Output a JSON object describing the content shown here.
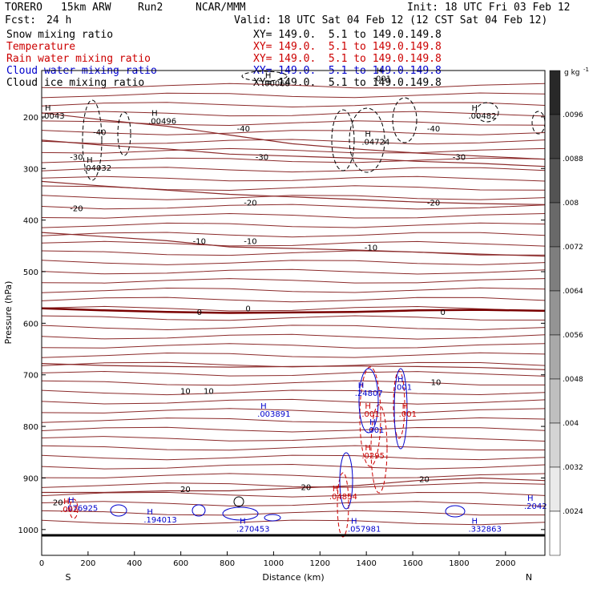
{
  "header": {
    "model": "TORERO",
    "resolution": "15km ARW",
    "run": "Run2",
    "org": "NCAR/MMM",
    "init": "Init: 18 UTC Fri 03 Feb 12",
    "fcst_label": "Fcst:",
    "fcst_value": "24 h",
    "valid": "Valid: 18 UTC Sat 04 Feb 12 (12 CST Sat 04 Feb 12)"
  },
  "fields": [
    {
      "name": "Snow mixing ratio",
      "xy": "XY= 149.0.  5.1 to 149.0.149.8",
      "color": "#000000"
    },
    {
      "name": "Temperature",
      "xy": "XY= 149.0.  5.1 to 149.0.149.8",
      "color": "#cc0000"
    },
    {
      "name": "Rain water mixing ratio",
      "xy": "XY= 149.0.  5.1 to 149.0.149.8",
      "color": "#cc0000"
    },
    {
      "name": "Cloud water mixing ratio",
      "xy": "XY= 149.0.  5.1 to 149.0.149.8",
      "color": "#0000cc"
    },
    {
      "name": "Cloud ice mixing ratio",
      "xy": "XY= 149.0.  5.1 to 149.0.149.8",
      "color": "#000000"
    }
  ],
  "chart_data": {
    "type": "contour cross-section",
    "xlabel": "Distance (km)",
    "ylabel": "Pressure (hPa)",
    "xlim": [
      0,
      2170
    ],
    "ylim": [
      1050,
      110
    ],
    "x_ticks": [
      0,
      200,
      400,
      600,
      800,
      1000,
      1200,
      1400,
      1600,
      1800,
      2000
    ],
    "y_ticks": [
      200,
      300,
      400,
      500,
      600,
      700,
      800,
      900,
      1000
    ],
    "x_end_left": "S",
    "x_end_right": "N",
    "colorbar": {
      "unit": "g kg",
      "unit_exp": "-1",
      "levels": [
        ".0096",
        ".0088",
        ".008",
        ".0072",
        ".0064",
        ".0056",
        ".0048",
        ".004",
        ".0032",
        ".0024"
      ]
    },
    "temperature_contours": [
      {
        "label": "-40",
        "p": [
          192,
          206,
          218,
          235,
          252,
          262,
          270,
          276,
          282
        ]
      },
      {
        "label": "-30",
        "p": [
          245,
          255,
          262,
          272,
          276,
          280,
          286,
          290,
          296
        ]
      },
      {
        "label": "-20",
        "p": [
          325,
          334,
          342,
          350,
          355,
          360,
          365,
          368,
          370
        ]
      },
      {
        "label": "-10",
        "p": [
          424,
          432,
          440,
          452,
          455,
          458,
          462,
          466,
          470
        ]
      },
      {
        "label": "0",
        "p": [
          571,
          575,
          578,
          580,
          579,
          578,
          575,
          574,
          576
        ]
      },
      {
        "label": "10",
        "p": [
          678,
          682,
          684,
          685,
          684,
          683,
          684,
          686,
          690
        ]
      },
      {
        "label": "20",
        "p": [
          928,
          928,
          925,
          925,
          920,
          915,
          905,
          900,
          905
        ]
      }
    ],
    "contour_x": [
      0,
      270,
      540,
      810,
      1080,
      1350,
      1620,
      1890,
      2170
    ],
    "temperature_labels": [
      {
        "text": "-40",
        "x": 250,
        "p": 235
      },
      {
        "text": "-40",
        "x": 870,
        "p": 228
      },
      {
        "text": "-40",
        "x": 1690,
        "p": 228
      },
      {
        "text": "-30",
        "x": 150,
        "p": 283
      },
      {
        "text": "-30",
        "x": 950,
        "p": 283
      },
      {
        "text": "-30",
        "x": 1800,
        "p": 283
      },
      {
        "text": "-20",
        "x": 150,
        "p": 383
      },
      {
        "text": "-20",
        "x": 900,
        "p": 372
      },
      {
        "text": "-20",
        "x": 1690,
        "p": 372
      },
      {
        "text": "-10",
        "x": 680,
        "p": 446
      },
      {
        "text": "-10",
        "x": 900,
        "p": 446
      },
      {
        "text": "-10",
        "x": 1420,
        "p": 459
      },
      {
        "text": "0",
        "x": 680,
        "p": 584
      },
      {
        "text": "0",
        "x": 890,
        "p": 577
      },
      {
        "text": "0",
        "x": 1730,
        "p": 584
      },
      {
        "text": "10",
        "x": 620,
        "p": 737
      },
      {
        "text": "10",
        "x": 720,
        "p": 737
      },
      {
        "text": "10",
        "x": 1700,
        "p": 720
      },
      {
        "text": "20",
        "x": 70,
        "p": 953
      },
      {
        "text": "20",
        "x": 620,
        "p": 927
      },
      {
        "text": "20",
        "x": 1140,
        "p": 923
      },
      {
        "text": "20",
        "x": 1650,
        "p": 908
      }
    ],
    "maxima": [
      {
        "text": ".00496",
        "x": 460,
        "p": 213,
        "color": "#000000"
      },
      {
        "text": ".04032",
        "x": 180,
        "p": 304,
        "color": "#000000"
      },
      {
        "text": ".04724",
        "x": 1380,
        "p": 254,
        "color": "#000000"
      },
      {
        "text": ".00482",
        "x": 1840,
        "p": 203,
        "color": "#000000"
      },
      {
        "text": ".00068",
        "x": 950,
        "p": 140,
        "color": "#000000"
      },
      {
        "text": ".001",
        "x": 1430,
        "p": 131,
        "color": "#000000"
      },
      {
        "text": ".0043",
        "x": 0,
        "p": 203,
        "color": "#000000"
      },
      {
        "text": ".24807",
        "x": 1350,
        "p": 741,
        "color": "#0000cc"
      },
      {
        "text": ".001",
        "x": 1520,
        "p": 729,
        "color": "#0000cc"
      },
      {
        "text": ".001",
        "x": 1400,
        "p": 812,
        "color": "#0000cc"
      },
      {
        "text": ".003891",
        "x": 930,
        "p": 781,
        "color": "#0000cc"
      },
      {
        "text": ".194013",
        "x": 440,
        "p": 986,
        "color": "#0000cc"
      },
      {
        "text": ".270453",
        "x": 840,
        "p": 1004,
        "color": "#0000cc"
      },
      {
        "text": ".057981",
        "x": 1320,
        "p": 1004,
        "color": "#0000cc"
      },
      {
        "text": ".332863",
        "x": 1840,
        "p": 1004,
        "color": "#0000cc"
      },
      {
        "text": ".2042",
        "x": 2080,
        "p": 960,
        "color": "#0000cc"
      },
      {
        "text": ".076925",
        "x": 100,
        "p": 964,
        "color": "#0000cc"
      },
      {
        "text": ".001",
        "x": 1380,
        "p": 781,
        "color": "#cc0000"
      },
      {
        "text": ".001",
        "x": 1540,
        "p": 781,
        "color": "#cc0000"
      },
      {
        "text": ".0295",
        "x": 1380,
        "p": 862,
        "color": "#cc0000"
      },
      {
        "text": ".04854",
        "x": 1240,
        "p": 941,
        "color": "#cc0000"
      },
      {
        "text": ".002",
        "x": 80,
        "p": 966,
        "color": "#cc0000"
      }
    ]
  }
}
